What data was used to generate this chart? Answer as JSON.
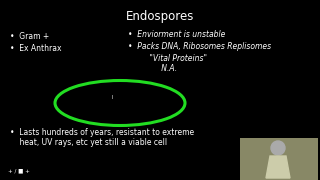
{
  "background_color": "#000000",
  "title": "Endospores",
  "title_color": "#ffffff",
  "title_fontsize": 8.5,
  "bullet_left_1": "•  Gram +",
  "bullet_left_2": "•  Ex Anthrax",
  "bullet_right_1": "•  Enviorment is unstable",
  "bullet_right_2": "•  Packs DNA, Ribosomes Replisomes",
  "bullet_right_3": "         \"Vital Proteins\"",
  "bullet_right_4": "              N.A.",
  "bullet_bottom_1": "•  Lasts hundreds of years, resistant to extreme",
  "bullet_bottom_2": "    heat, UV rays, etc yet still a viable cell",
  "text_color": "#ffffff",
  "ellipse_color": "#22dd22",
  "bottom_icons": "•  +/■+",
  "person_color": "#888866"
}
